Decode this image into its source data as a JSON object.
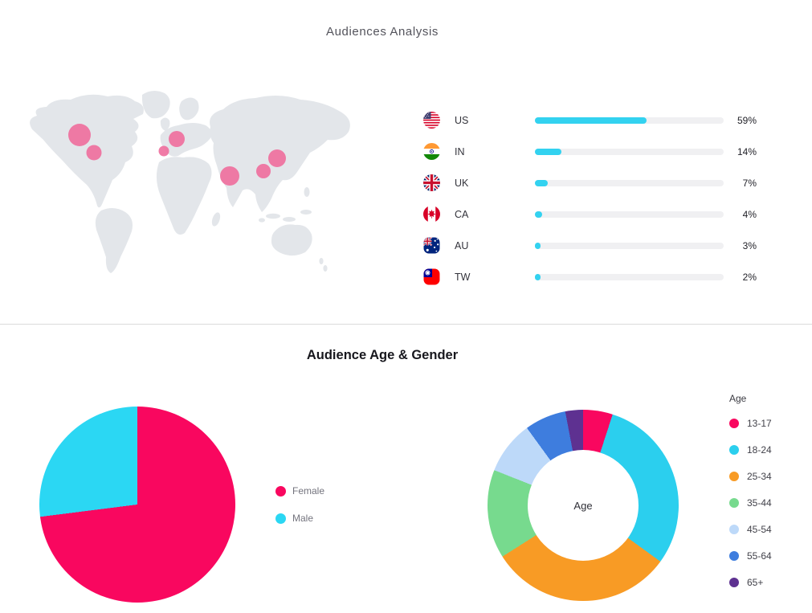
{
  "page": {
    "background": "#ffffff",
    "divider_color": "#dbdbdb"
  },
  "sections": {
    "audiences": {
      "title": "Audiences Analysis"
    },
    "age_gender": {
      "title": "Audience Age & Gender"
    }
  },
  "map": {
    "land_color": "#e3e6ea",
    "bubble_color": "#ee6d9c",
    "bubbles": [
      {
        "name": "canada",
        "x": 69,
        "y": 62,
        "r": 14
      },
      {
        "name": "us-central",
        "x": 87,
        "y": 84,
        "r": 9.5
      },
      {
        "name": "western-europe",
        "x": 174,
        "y": 82,
        "r": 6.5
      },
      {
        "name": "central-europe",
        "x": 190,
        "y": 67,
        "r": 10
      },
      {
        "name": "india",
        "x": 256,
        "y": 113,
        "r": 12
      },
      {
        "name": "taiwan",
        "x": 298,
        "y": 107,
        "r": 9
      },
      {
        "name": "japan",
        "x": 315,
        "y": 91,
        "r": 11
      }
    ]
  },
  "chart_data": [
    {
      "id": "country-audience",
      "type": "bar",
      "title": "Audiences Analysis",
      "categories": [
        "US",
        "IN",
        "UK",
        "CA",
        "AU",
        "TW"
      ],
      "values": [
        59,
        14,
        7,
        4,
        3,
        2
      ],
      "unit": "%",
      "xlim": [
        0,
        100
      ],
      "bar_color": "#33d2f0",
      "track_color": "#f0f0f2",
      "flag_icons": [
        "us-flag-icon",
        "in-flag-icon",
        "uk-flag-icon",
        "ca-flag-icon",
        "au-flag-icon",
        "tw-flag-icon"
      ]
    },
    {
      "id": "gender-share",
      "type": "pie",
      "title": "Audience Age & Gender",
      "labels": [
        "Female",
        "Male"
      ],
      "values": [
        73,
        27
      ],
      "colors": [
        "#f9075f",
        "#2bd7f3"
      ],
      "legend_position": "right"
    },
    {
      "id": "age-distribution",
      "type": "donut",
      "center_label": "Age",
      "legend_title": "Age",
      "legend_position": "right",
      "labels": [
        "13-17",
        "18-24",
        "25-34",
        "35-44",
        "45-54",
        "55-64",
        "65+"
      ],
      "values": [
        5,
        30,
        31,
        15,
        9,
        7,
        3
      ],
      "colors": [
        "#f9075f",
        "#2bcfee",
        "#f89b25",
        "#77da8e",
        "#bdd9f9",
        "#3e7dde",
        "#5e3191"
      ]
    }
  ]
}
